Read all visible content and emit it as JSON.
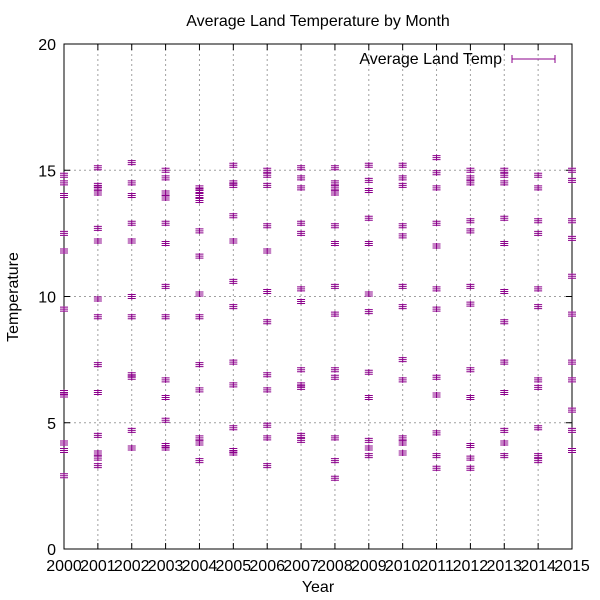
{
  "chart_data": {
    "type": "scatter",
    "title": "Average Land Temperature by Month",
    "xlabel": "Year",
    "ylabel": "Temperature",
    "xlim": [
      2000,
      2015
    ],
    "ylim": [
      0,
      20
    ],
    "xticks": [
      "2000",
      "2001",
      "2002",
      "2003",
      "2004",
      "2005",
      "2006",
      "2007",
      "2008",
      "2009",
      "2010",
      "2011",
      "2012",
      "2013",
      "2014",
      "2015"
    ],
    "yticks": [
      "0",
      "5",
      "10",
      "15",
      "20"
    ],
    "grid": true,
    "legend_position": "top-right",
    "series": [
      {
        "name": "Average Land Temp",
        "color": "#8b008b",
        "error_bars": true,
        "points": [
          [
            2000.0,
            2.9
          ],
          [
            2000.0,
            3.9
          ],
          [
            2000.0,
            4.2
          ],
          [
            2000.0,
            6.1
          ],
          [
            2000.0,
            6.2
          ],
          [
            2000.0,
            9.5
          ],
          [
            2000.0,
            11.8
          ],
          [
            2000.0,
            12.5
          ],
          [
            2000.0,
            14.0
          ],
          [
            2000.0,
            14.5
          ],
          [
            2000.0,
            14.8
          ],
          [
            2001.0,
            3.3
          ],
          [
            2001.0,
            3.6
          ],
          [
            2001.0,
            3.8
          ],
          [
            2001.0,
            4.5
          ],
          [
            2001.0,
            6.2
          ],
          [
            2001.0,
            7.3
          ],
          [
            2001.0,
            9.2
          ],
          [
            2001.0,
            9.9
          ],
          [
            2001.0,
            12.2
          ],
          [
            2001.0,
            12.7
          ],
          [
            2001.0,
            14.1
          ],
          [
            2001.0,
            14.3
          ],
          [
            2001.0,
            14.4
          ],
          [
            2001.0,
            15.1
          ],
          [
            2002.0,
            4.0
          ],
          [
            2002.0,
            4.7
          ],
          [
            2002.0,
            6.8
          ],
          [
            2002.0,
            6.9
          ],
          [
            2002.0,
            9.2
          ],
          [
            2002.0,
            10.0
          ],
          [
            2002.0,
            12.2
          ],
          [
            2002.0,
            12.9
          ],
          [
            2002.0,
            14.0
          ],
          [
            2002.0,
            14.5
          ],
          [
            2002.0,
            15.3
          ],
          [
            2003.0,
            4.0
          ],
          [
            2003.0,
            4.1
          ],
          [
            2003.0,
            5.1
          ],
          [
            2003.0,
            6.0
          ],
          [
            2003.0,
            6.7
          ],
          [
            2003.0,
            9.2
          ],
          [
            2003.0,
            10.4
          ],
          [
            2003.0,
            12.1
          ],
          [
            2003.0,
            12.9
          ],
          [
            2003.0,
            13.9
          ],
          [
            2003.0,
            14.1
          ],
          [
            2003.0,
            14.7
          ],
          [
            2003.0,
            15.0
          ],
          [
            2004.0,
            3.5
          ],
          [
            2004.0,
            4.2
          ],
          [
            2004.0,
            4.4
          ],
          [
            2004.0,
            6.3
          ],
          [
            2004.0,
            7.3
          ],
          [
            2004.0,
            9.2
          ],
          [
            2004.0,
            10.1
          ],
          [
            2004.0,
            11.6
          ],
          [
            2004.0,
            12.6
          ],
          [
            2004.0,
            13.8
          ],
          [
            2004.0,
            14.0
          ],
          [
            2004.0,
            14.2
          ],
          [
            2004.0,
            14.3
          ],
          [
            2005.0,
            3.8
          ],
          [
            2005.0,
            3.9
          ],
          [
            2005.0,
            4.8
          ],
          [
            2005.0,
            6.5
          ],
          [
            2005.0,
            7.4
          ],
          [
            2005.0,
            9.6
          ],
          [
            2005.0,
            10.6
          ],
          [
            2005.0,
            12.2
          ],
          [
            2005.0,
            13.2
          ],
          [
            2005.0,
            14.4
          ],
          [
            2005.0,
            14.5
          ],
          [
            2005.0,
            15.2
          ],
          [
            2006.0,
            3.3
          ],
          [
            2006.0,
            4.4
          ],
          [
            2006.0,
            4.9
          ],
          [
            2006.0,
            6.3
          ],
          [
            2006.0,
            6.9
          ],
          [
            2006.0,
            9.0
          ],
          [
            2006.0,
            10.2
          ],
          [
            2006.0,
            11.8
          ],
          [
            2006.0,
            12.8
          ],
          [
            2006.0,
            14.4
          ],
          [
            2006.0,
            14.8
          ],
          [
            2006.0,
            15.0
          ],
          [
            2007.0,
            4.3
          ],
          [
            2007.0,
            4.5
          ],
          [
            2007.0,
            6.4
          ],
          [
            2007.0,
            6.5
          ],
          [
            2007.0,
            7.1
          ],
          [
            2007.0,
            9.8
          ],
          [
            2007.0,
            10.3
          ],
          [
            2007.0,
            12.5
          ],
          [
            2007.0,
            12.9
          ],
          [
            2007.0,
            14.3
          ],
          [
            2007.0,
            14.7
          ],
          [
            2007.0,
            15.1
          ],
          [
            2008.0,
            2.8
          ],
          [
            2008.0,
            3.5
          ],
          [
            2008.0,
            4.4
          ],
          [
            2008.0,
            6.8
          ],
          [
            2008.0,
            7.1
          ],
          [
            2008.0,
            9.3
          ],
          [
            2008.0,
            10.4
          ],
          [
            2008.0,
            12.1
          ],
          [
            2008.0,
            12.8
          ],
          [
            2008.0,
            14.1
          ],
          [
            2008.0,
            14.3
          ],
          [
            2008.0,
            14.5
          ],
          [
            2008.0,
            15.1
          ],
          [
            2009.0,
            3.7
          ],
          [
            2009.0,
            4.0
          ],
          [
            2009.0,
            4.3
          ],
          [
            2009.0,
            6.0
          ],
          [
            2009.0,
            7.0
          ],
          [
            2009.0,
            9.4
          ],
          [
            2009.0,
            10.1
          ],
          [
            2009.0,
            12.1
          ],
          [
            2009.0,
            13.1
          ],
          [
            2009.0,
            14.2
          ],
          [
            2009.0,
            14.6
          ],
          [
            2009.0,
            15.2
          ],
          [
            2010.0,
            3.8
          ],
          [
            2010.0,
            4.2
          ],
          [
            2010.0,
            4.4
          ],
          [
            2010.0,
            6.7
          ],
          [
            2010.0,
            7.5
          ],
          [
            2010.0,
            9.6
          ],
          [
            2010.0,
            10.4
          ],
          [
            2010.0,
            12.4
          ],
          [
            2010.0,
            12.8
          ],
          [
            2010.0,
            14.4
          ],
          [
            2010.0,
            14.7
          ],
          [
            2010.0,
            15.2
          ],
          [
            2011.0,
            3.2
          ],
          [
            2011.0,
            3.7
          ],
          [
            2011.0,
            4.6
          ],
          [
            2011.0,
            6.1
          ],
          [
            2011.0,
            6.8
          ],
          [
            2011.0,
            9.5
          ],
          [
            2011.0,
            10.3
          ],
          [
            2011.0,
            12.0
          ],
          [
            2011.0,
            12.9
          ],
          [
            2011.0,
            14.3
          ],
          [
            2011.0,
            14.9
          ],
          [
            2011.0,
            15.5
          ],
          [
            2012.0,
            3.2
          ],
          [
            2012.0,
            3.6
          ],
          [
            2012.0,
            4.1
          ],
          [
            2012.0,
            6.0
          ],
          [
            2012.0,
            7.1
          ],
          [
            2012.0,
            9.7
          ],
          [
            2012.0,
            10.4
          ],
          [
            2012.0,
            12.6
          ],
          [
            2012.0,
            13.0
          ],
          [
            2012.0,
            14.5
          ],
          [
            2012.0,
            14.7
          ],
          [
            2012.0,
            15.0
          ],
          [
            2013.0,
            3.7
          ],
          [
            2013.0,
            4.2
          ],
          [
            2013.0,
            4.7
          ],
          [
            2013.0,
            6.2
          ],
          [
            2013.0,
            7.4
          ],
          [
            2013.0,
            9.0
          ],
          [
            2013.0,
            10.2
          ],
          [
            2013.0,
            12.1
          ],
          [
            2013.0,
            13.1
          ],
          [
            2013.0,
            14.5
          ],
          [
            2013.0,
            14.8
          ],
          [
            2013.0,
            15.0
          ],
          [
            2014.0,
            3.5
          ],
          [
            2014.0,
            3.7
          ],
          [
            2014.0,
            4.8
          ],
          [
            2014.0,
            6.4
          ],
          [
            2014.0,
            6.7
          ],
          [
            2014.0,
            9.6
          ],
          [
            2014.0,
            10.3
          ],
          [
            2014.0,
            12.5
          ],
          [
            2014.0,
            13.0
          ],
          [
            2014.0,
            14.3
          ],
          [
            2014.0,
            14.8
          ],
          [
            2015.0,
            3.9
          ],
          [
            2015.0,
            4.7
          ],
          [
            2015.0,
            5.5
          ],
          [
            2015.0,
            6.7
          ],
          [
            2015.0,
            7.4
          ],
          [
            2015.0,
            9.3
          ],
          [
            2015.0,
            10.8
          ],
          [
            2015.0,
            12.3
          ],
          [
            2015.0,
            13.0
          ],
          [
            2015.0,
            14.6
          ],
          [
            2015.0,
            15.0
          ]
        ]
      }
    ]
  }
}
